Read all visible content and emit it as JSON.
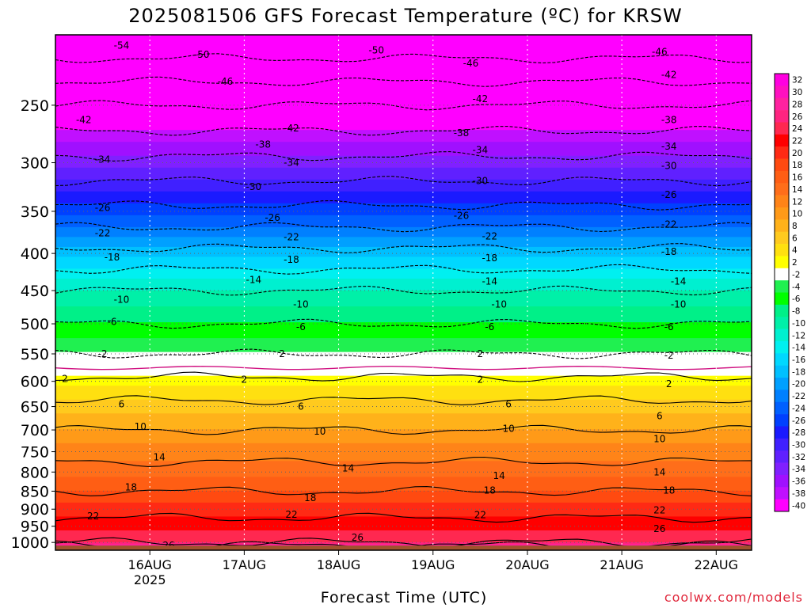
{
  "chart_data": {
    "type": "heatmap",
    "title": "2025081506 GFS Forecast Temperature (ºC) for KRSW",
    "xlabel": "Forecast Time (UTC)",
    "ylabel": "",
    "credit": "coolwx.com/models",
    "x_ticks": [
      {
        "label": "16AUG",
        "sub": "2025",
        "day": 1
      },
      {
        "label": "17AUG",
        "sub": "",
        "day": 2
      },
      {
        "label": "18AUG",
        "sub": "",
        "day": 3
      },
      {
        "label": "19AUG",
        "sub": "",
        "day": 4
      },
      {
        "label": "20AUG",
        "sub": "",
        "day": 5
      },
      {
        "label": "21AUG",
        "sub": "",
        "day": 6
      },
      {
        "label": "22AUG",
        "sub": "",
        "day": 7
      }
    ],
    "xlim_days": [
      0,
      7.375
    ],
    "y_ticks": [
      250,
      300,
      350,
      400,
      450,
      500,
      550,
      600,
      650,
      700,
      750,
      800,
      850,
      900,
      950,
      1000
    ],
    "ylim_hpa": [
      1025,
      200
    ],
    "y_scale": "log pressure (reversed)",
    "colorbar": {
      "levels": [
        "32",
        "30",
        "28",
        "26",
        "24",
        "22",
        "20",
        "18",
        "16",
        "14",
        "12",
        "10",
        "8",
        "6",
        "4",
        "2",
        "-2",
        "-4",
        "-6",
        "-8",
        "-10",
        "-12",
        "-14",
        "-16",
        "-18",
        "-20",
        "-22",
        "-24",
        "-26",
        "-28",
        "-30",
        "-32",
        "-34",
        "-36",
        "-38",
        "-40"
      ],
      "colors": [
        "#ff00e0",
        "#ff10c0",
        "#ff22a0",
        "#ff2480",
        "#ff2850",
        "#ff0000",
        "#ff2a14",
        "#ff4a10",
        "#ff5e14",
        "#ff6e1a",
        "#ff8418",
        "#ff9a18",
        "#ffb21a",
        "#ffca1e",
        "#ffe010",
        "#ffff00",
        "#ffffff",
        "#20f050",
        "#00ff00",
        "#00f088",
        "#00f0a8",
        "#00f0d0",
        "#00f0f0",
        "#00d8ff",
        "#00c0ff",
        "#00a0ff",
        "#0080ff",
        "#0060ff",
        "#0040ff",
        "#1a1aff",
        "#4020ff",
        "#6020ff",
        "#8020ff",
        "#a010ff",
        "#c010ff",
        "#ff00ff"
      ]
    },
    "temperature_profile": [
      {
        "p": 1010,
        "t": 28
      },
      {
        "p": 1000,
        "t": 26
      },
      {
        "p": 950,
        "t": 23
      },
      {
        "p": 900,
        "t": 21
      },
      {
        "p": 850,
        "t": 18
      },
      {
        "p": 800,
        "t": 15
      },
      {
        "p": 750,
        "t": 13
      },
      {
        "p": 700,
        "t": 10
      },
      {
        "p": 650,
        "t": 7
      },
      {
        "p": 600,
        "t": 3
      },
      {
        "p": 575,
        "t": 0
      },
      {
        "p": 550,
        "t": -2
      },
      {
        "p": 500,
        "t": -6
      },
      {
        "p": 450,
        "t": -10
      },
      {
        "p": 400,
        "t": -17
      },
      {
        "p": 350,
        "t": -25
      },
      {
        "p": 300,
        "t": -33
      },
      {
        "p": 250,
        "t": -42
      },
      {
        "p": 200,
        "t": -54
      }
    ],
    "contour_labels": [
      {
        "text": "-54",
        "day": 0.7,
        "p": 207
      },
      {
        "text": "-50",
        "day": 1.55,
        "p": 213
      },
      {
        "text": "-50",
        "day": 3.4,
        "p": 210
      },
      {
        "text": "-46",
        "day": 1.8,
        "p": 232
      },
      {
        "text": "-46",
        "day": 4.4,
        "p": 219
      },
      {
        "text": "-46",
        "day": 6.4,
        "p": 211
      },
      {
        "text": "-42",
        "day": 0.3,
        "p": 262
      },
      {
        "text": "-42",
        "day": 2.5,
        "p": 269
      },
      {
        "text": "-42",
        "day": 4.5,
        "p": 245
      },
      {
        "text": "-42",
        "day": 6.5,
        "p": 227
      },
      {
        "text": "-38",
        "day": 2.2,
        "p": 283
      },
      {
        "text": "-38",
        "day": 4.3,
        "p": 273
      },
      {
        "text": "-38",
        "day": 6.5,
        "p": 262
      },
      {
        "text": "-34",
        "day": 0.5,
        "p": 297
      },
      {
        "text": "-34",
        "day": 2.5,
        "p": 300
      },
      {
        "text": "-34",
        "day": 4.5,
        "p": 288
      },
      {
        "text": "-34",
        "day": 6.5,
        "p": 285
      },
      {
        "text": "-30",
        "day": 2.1,
        "p": 324
      },
      {
        "text": "-30",
        "day": 4.5,
        "p": 318
      },
      {
        "text": "-30",
        "day": 6.5,
        "p": 303
      },
      {
        "text": "-26",
        "day": 0.5,
        "p": 346
      },
      {
        "text": "-26",
        "day": 2.3,
        "p": 357
      },
      {
        "text": "-26",
        "day": 4.3,
        "p": 355
      },
      {
        "text": "-26",
        "day": 6.5,
        "p": 332
      },
      {
        "text": "-22",
        "day": 0.5,
        "p": 375
      },
      {
        "text": "-22",
        "day": 2.5,
        "p": 380
      },
      {
        "text": "-22",
        "day": 4.6,
        "p": 379
      },
      {
        "text": "-22",
        "day": 6.5,
        "p": 365
      },
      {
        "text": "-18",
        "day": 0.6,
        "p": 405
      },
      {
        "text": "-18",
        "day": 2.5,
        "p": 408
      },
      {
        "text": "-18",
        "day": 4.6,
        "p": 406
      },
      {
        "text": "-18",
        "day": 6.5,
        "p": 398
      },
      {
        "text": "-14",
        "day": 2.1,
        "p": 435
      },
      {
        "text": "-14",
        "day": 4.6,
        "p": 437
      },
      {
        "text": "-14",
        "day": 6.6,
        "p": 437
      },
      {
        "text": "-10",
        "day": 0.7,
        "p": 463
      },
      {
        "text": "-10",
        "day": 2.6,
        "p": 470
      },
      {
        "text": "-10",
        "day": 4.7,
        "p": 470
      },
      {
        "text": "-10",
        "day": 6.6,
        "p": 470
      },
      {
        "text": "-6",
        "day": 0.6,
        "p": 497
      },
      {
        "text": "-6",
        "day": 2.6,
        "p": 505
      },
      {
        "text": "-6",
        "day": 4.6,
        "p": 505
      },
      {
        "text": "-6",
        "day": 6.5,
        "p": 505
      },
      {
        "text": "-2",
        "day": 0.5,
        "p": 550
      },
      {
        "text": "2",
        "day": 2.4,
        "p": 550
      },
      {
        "text": "2",
        "day": 4.5,
        "p": 550
      },
      {
        "text": "-2",
        "day": 6.5,
        "p": 553
      },
      {
        "text": "2",
        "day": 0.1,
        "p": 595
      },
      {
        "text": "2",
        "day": 2.0,
        "p": 597
      },
      {
        "text": "2",
        "day": 4.5,
        "p": 597
      },
      {
        "text": "2",
        "day": 6.5,
        "p": 605
      },
      {
        "text": "6",
        "day": 0.7,
        "p": 645
      },
      {
        "text": "6",
        "day": 2.6,
        "p": 650
      },
      {
        "text": "6",
        "day": 4.8,
        "p": 645
      },
      {
        "text": "6",
        "day": 6.4,
        "p": 670
      },
      {
        "text": "10",
        "day": 0.9,
        "p": 693
      },
      {
        "text": "10",
        "day": 2.8,
        "p": 703
      },
      {
        "text": "10",
        "day": 4.8,
        "p": 697
      },
      {
        "text": "10",
        "day": 6.4,
        "p": 720
      },
      {
        "text": "14",
        "day": 1.1,
        "p": 763
      },
      {
        "text": "14",
        "day": 3.1,
        "p": 790
      },
      {
        "text": "14",
        "day": 4.7,
        "p": 810
      },
      {
        "text": "14",
        "day": 6.4,
        "p": 800
      },
      {
        "text": "18",
        "day": 0.8,
        "p": 840
      },
      {
        "text": "18",
        "day": 2.7,
        "p": 868
      },
      {
        "text": "18",
        "day": 4.6,
        "p": 848
      },
      {
        "text": "18",
        "day": 6.5,
        "p": 848
      },
      {
        "text": "22",
        "day": 0.4,
        "p": 920
      },
      {
        "text": "22",
        "day": 2.5,
        "p": 915
      },
      {
        "text": "22",
        "day": 4.5,
        "p": 917
      },
      {
        "text": "22",
        "day": 6.4,
        "p": 903
      },
      {
        "text": "26",
        "day": 3.2,
        "p": 985
      },
      {
        "text": "26",
        "day": 6.4,
        "p": 958
      },
      {
        "text": "26",
        "day": 1.2,
        "p": 1010
      }
    ]
  }
}
